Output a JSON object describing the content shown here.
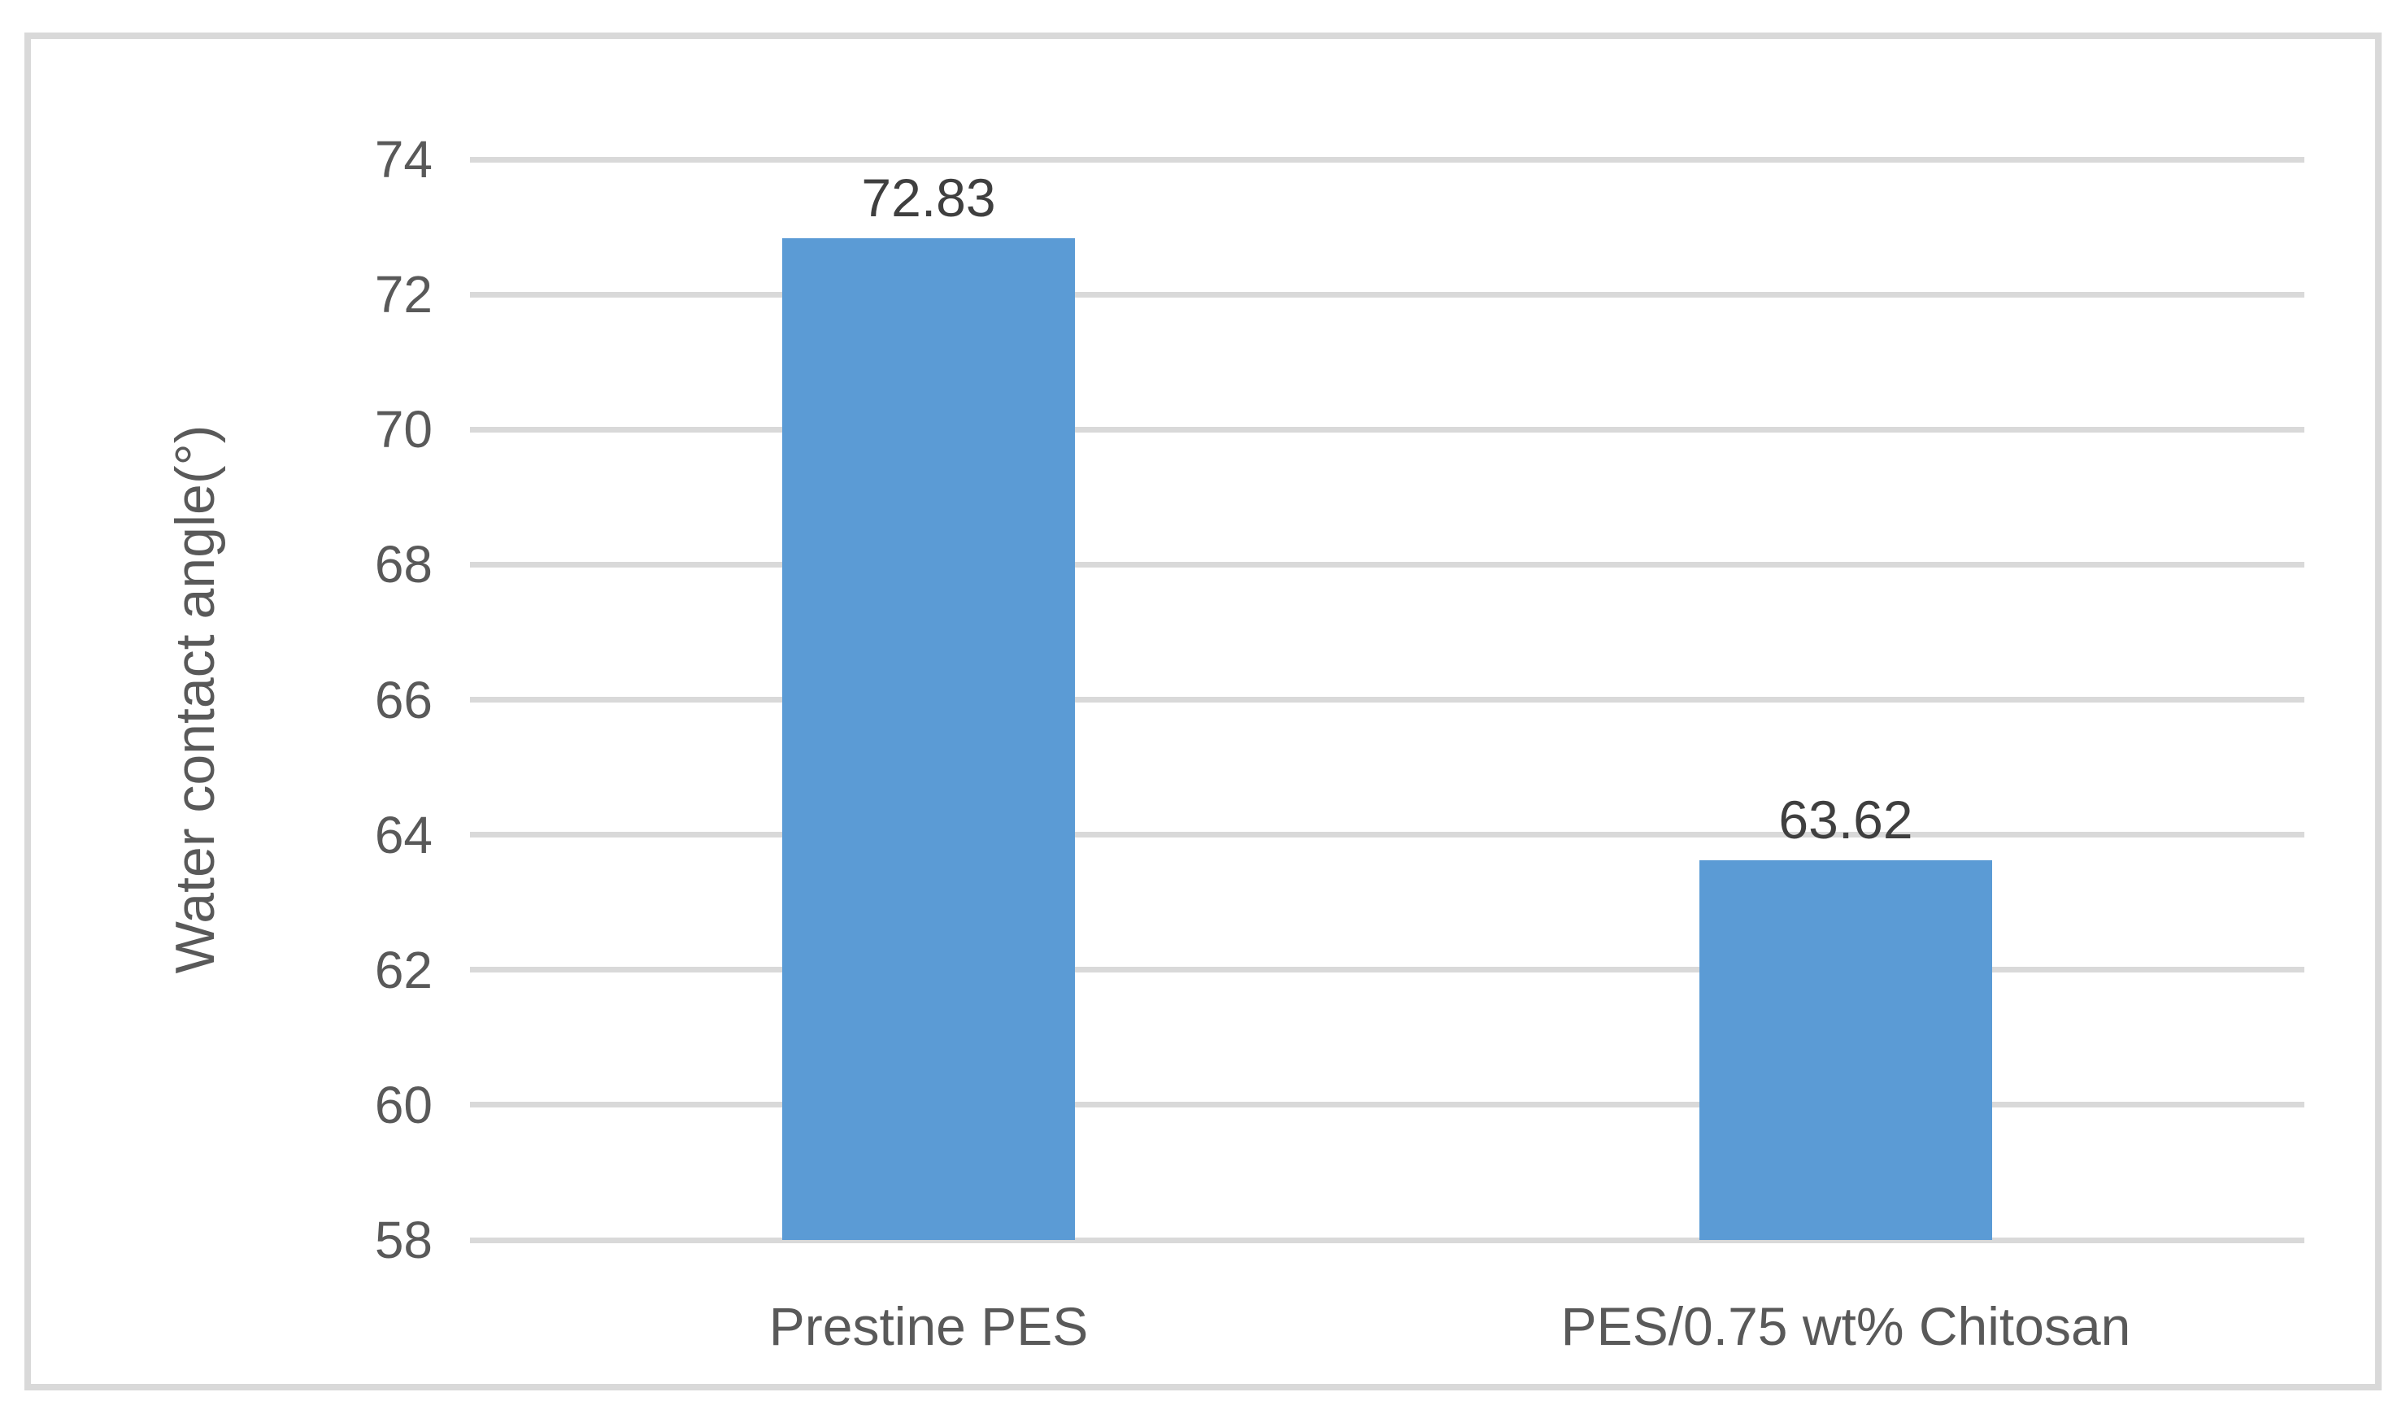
{
  "figure": {
    "background": "#FFFFFF",
    "border_color": "#D9D9D9",
    "axis_text_color": "#595959",
    "data_label_color": "#3F3F3F"
  },
  "chart_data": {
    "type": "bar",
    "title": "",
    "categories": [
      "Prestine PES",
      "PES/0.75 wt% Chitosan"
    ],
    "values": [
      72.83,
      63.62
    ],
    "value_labels": [
      "72.83",
      "63.62"
    ],
    "xlabel": "",
    "ylabel": "Water contact angle(°)",
    "ylim": [
      58,
      74
    ],
    "ytick_step": 2,
    "yticks": [
      74,
      72,
      70,
      68,
      66,
      64,
      62,
      60,
      58
    ],
    "bar_color": "#5B9BD5",
    "gridline_color": "#D9D9D9",
    "grid": true,
    "legend_position": "none"
  }
}
